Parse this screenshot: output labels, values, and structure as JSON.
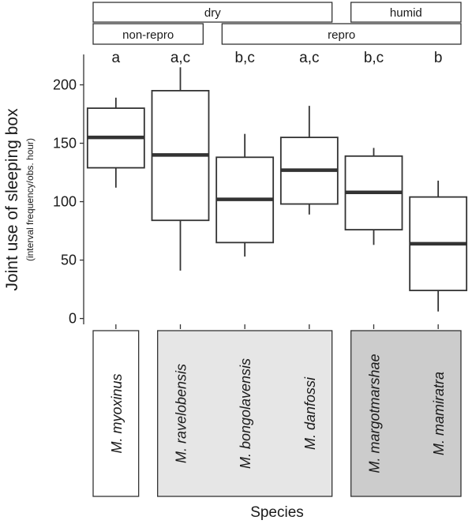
{
  "chart_data": {
    "type": "box",
    "ylabel": "Joint use of sleeping box",
    "ylabel_sub": "(interval frequency/obs. hour)",
    "xlabel": "Species",
    "ylim": [
      -5,
      226
    ],
    "yticks": [
      0,
      50,
      100,
      150,
      200
    ],
    "grid": false,
    "categories": [
      "M. myoxinus",
      "M. ravelobensis",
      "M. bongolavensis",
      "M. danfossi",
      "M. margotmarshae",
      "M. mamiratra"
    ],
    "significance_letters": [
      "a",
      "a,c",
      "b,c",
      "a,c",
      "b,c",
      "b"
    ],
    "boxes": [
      {
        "whisker_low": 112,
        "q1": 129,
        "median": 155,
        "q3": 180,
        "whisker_high": 189
      },
      {
        "whisker_low": 41,
        "q1": 84,
        "median": 140,
        "q3": 195,
        "whisker_high": 215
      },
      {
        "whisker_low": 53,
        "q1": 65,
        "median": 102,
        "q3": 138,
        "whisker_high": 158
      },
      {
        "whisker_low": 89,
        "q1": 98,
        "median": 127,
        "q3": 155,
        "whisker_high": 182
      },
      {
        "whisker_low": 63,
        "q1": 76,
        "median": 108,
        "q3": 139,
        "whisker_high": 146
      },
      {
        "whisker_low": 6,
        "q1": 24,
        "median": 64,
        "q3": 104,
        "whisker_high": 118
      }
    ],
    "climate_groups": [
      {
        "label": "dry",
        "from": 0,
        "to": 3
      },
      {
        "label": "humid",
        "from": 4,
        "to": 5
      }
    ],
    "repro_groups": [
      {
        "label": "non-repro",
        "from": 0,
        "to": 1
      },
      {
        "label": "repro",
        "from": 2,
        "to": 5
      }
    ],
    "species_panels": [
      {
        "from": 0,
        "to": 0,
        "fill": "#ffffff"
      },
      {
        "from": 1,
        "to": 3,
        "fill": "#e6e6e6"
      },
      {
        "from": 4,
        "to": 5,
        "fill": "#cccccc"
      }
    ]
  }
}
